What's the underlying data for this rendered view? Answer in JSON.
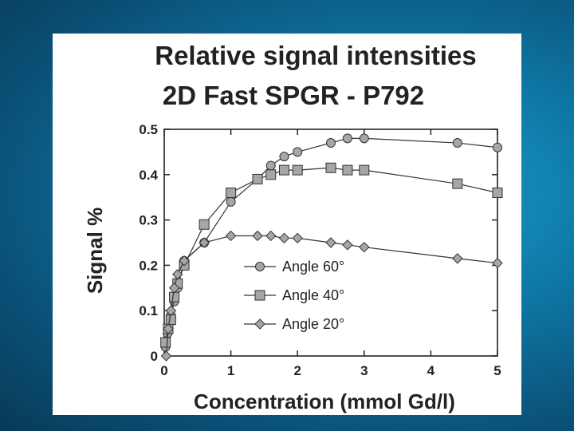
{
  "chart_data": {
    "type": "line",
    "title": "Relative signal  intensities",
    "subtitle": "2D Fast SPGR - P792",
    "xlabel": "Concentration (mmol Gd/l)",
    "ylabel": "Signal %",
    "xlim": [
      0,
      5
    ],
    "ylim": [
      0,
      0.5
    ],
    "xticks": [
      "0",
      "1",
      "2",
      "3",
      "4",
      "5"
    ],
    "yticks": [
      "0",
      "0.1",
      "0.2",
      "0.3",
      "0.4",
      "0.5"
    ],
    "grid": false,
    "legend_position": "center",
    "series": [
      {
        "name": "Angle 60°",
        "marker": "circle",
        "x": [
          0.02,
          0.05,
          0.1,
          0.15,
          0.2,
          0.3,
          0.6,
          1.0,
          1.4,
          1.6,
          1.8,
          2.0,
          2.5,
          2.75,
          3.0,
          4.4,
          5.0
        ],
        "y": [
          0.02,
          0.05,
          0.09,
          0.12,
          0.15,
          0.21,
          0.25,
          0.34,
          0.39,
          0.42,
          0.44,
          0.45,
          0.47,
          0.48,
          0.48,
          0.47,
          0.46
        ]
      },
      {
        "name": "Angle 40°",
        "marker": "square",
        "x": [
          0.02,
          0.06,
          0.1,
          0.15,
          0.2,
          0.3,
          0.6,
          1.0,
          1.4,
          1.6,
          1.8,
          2.0,
          2.5,
          2.75,
          3.0,
          4.4,
          5.0
        ],
        "y": [
          0.03,
          0.06,
          0.08,
          0.13,
          0.16,
          0.2,
          0.29,
          0.36,
          0.39,
          0.4,
          0.41,
          0.41,
          0.415,
          0.41,
          0.41,
          0.38,
          0.36
        ]
      },
      {
        "name": "Angle 20°",
        "marker": "diamond",
        "x": [
          0.03,
          0.06,
          0.1,
          0.15,
          0.2,
          0.3,
          0.6,
          1.0,
          1.4,
          1.6,
          1.8,
          2.0,
          2.5,
          2.75,
          3.0,
          4.4,
          5.0
        ],
        "y": [
          0.0,
          0.06,
          0.1,
          0.15,
          0.18,
          0.21,
          0.25,
          0.265,
          0.265,
          0.265,
          0.26,
          0.26,
          0.25,
          0.245,
          0.24,
          0.215,
          0.205
        ]
      }
    ]
  }
}
